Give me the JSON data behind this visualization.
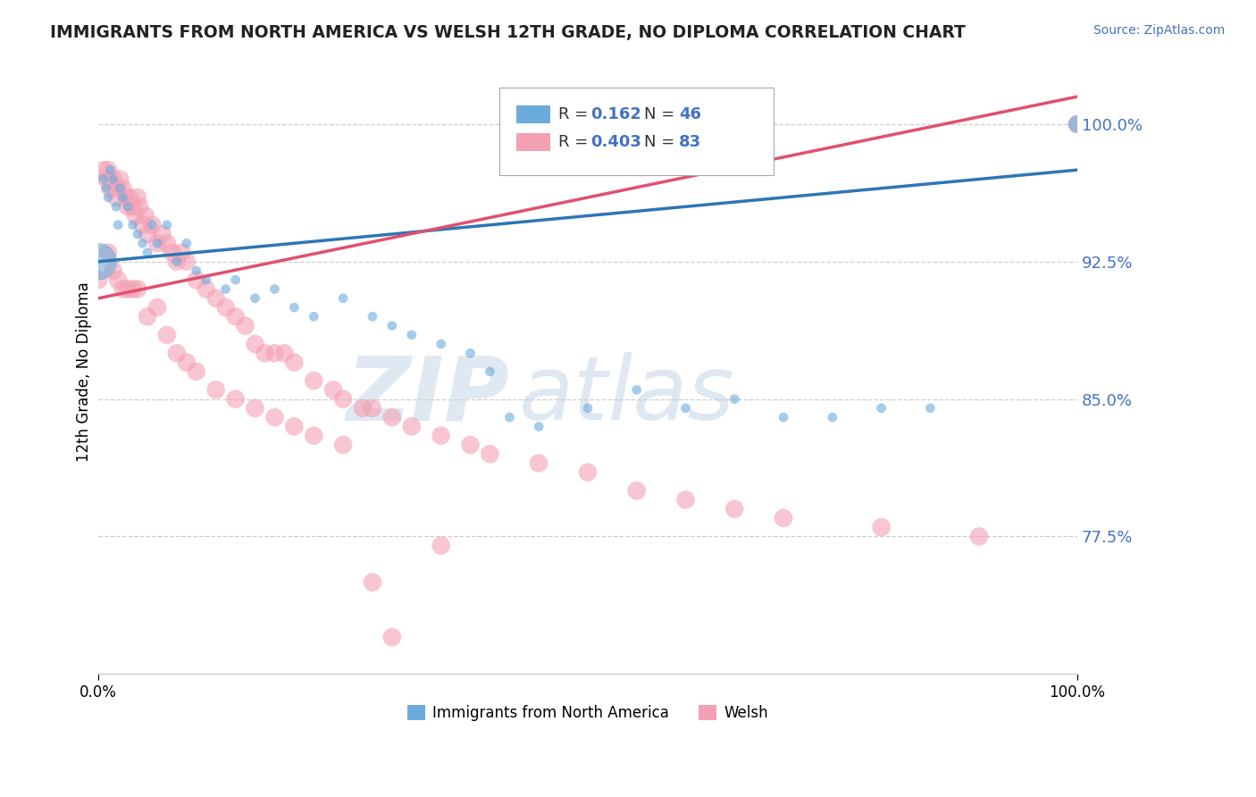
{
  "title": "IMMIGRANTS FROM NORTH AMERICA VS WELSH 12TH GRADE, NO DIPLOMA CORRELATION CHART",
  "source": "Source: ZipAtlas.com",
  "ylabel": "12th Grade, No Diploma",
  "watermark_zip": "ZIP",
  "watermark_atlas": "atlas",
  "xlim": [
    0.0,
    1.0
  ],
  "ylim": [
    0.7,
    1.03
  ],
  "yticks": [
    0.775,
    0.85,
    0.925,
    1.0
  ],
  "ytick_labels": [
    "77.5%",
    "85.0%",
    "92.5%",
    "100.0%"
  ],
  "xticks": [
    0.0,
    1.0
  ],
  "xtick_labels": [
    "0.0%",
    "100.0%"
  ],
  "legend_R1": "0.162",
  "legend_N1": "46",
  "legend_R2": "0.403",
  "legend_N2": "83",
  "blue_color": "#6aabdc",
  "pink_color": "#f4a0b5",
  "blue_line_color": "#2e75b6",
  "pink_line_color": "#e05070",
  "blue_trend_x": [
    0.0,
    1.0
  ],
  "blue_trend_y": [
    0.925,
    0.975
  ],
  "pink_trend_x": [
    0.0,
    1.0
  ],
  "pink_trend_y": [
    0.905,
    1.015
  ],
  "blue_x": [
    0.0,
    0.005,
    0.008,
    0.01,
    0.012,
    0.015,
    0.018,
    0.02,
    0.022,
    0.025,
    0.03,
    0.035,
    0.04,
    0.045,
    0.05,
    0.055,
    0.06,
    0.07,
    0.08,
    0.09,
    0.1,
    0.11,
    0.13,
    0.14,
    0.16,
    0.18,
    0.2,
    0.22,
    0.25,
    0.28,
    0.3,
    0.32,
    0.35,
    0.38,
    0.4,
    0.42,
    0.45,
    0.5,
    0.55,
    0.6,
    0.65,
    0.7,
    0.75,
    0.8,
    0.85,
    1.0
  ],
  "blue_y": [
    0.925,
    0.97,
    0.965,
    0.96,
    0.975,
    0.97,
    0.955,
    0.945,
    0.965,
    0.96,
    0.955,
    0.945,
    0.94,
    0.935,
    0.93,
    0.945,
    0.935,
    0.945,
    0.925,
    0.935,
    0.92,
    0.915,
    0.91,
    0.915,
    0.905,
    0.91,
    0.9,
    0.895,
    0.905,
    0.895,
    0.89,
    0.885,
    0.88,
    0.875,
    0.865,
    0.84,
    0.835,
    0.845,
    0.855,
    0.845,
    0.85,
    0.84,
    0.84,
    0.845,
    0.845,
    1.0
  ],
  "blue_sizes": [
    900,
    60,
    60,
    60,
    60,
    60,
    60,
    60,
    60,
    60,
    60,
    60,
    60,
    60,
    60,
    60,
    60,
    60,
    60,
    60,
    60,
    60,
    60,
    60,
    60,
    60,
    60,
    60,
    60,
    60,
    60,
    60,
    60,
    60,
    60,
    60,
    60,
    60,
    60,
    60,
    60,
    60,
    60,
    60,
    60,
    200
  ],
  "pink_x": [
    0.0,
    0.005,
    0.008,
    0.01,
    0.012,
    0.015,
    0.018,
    0.02,
    0.022,
    0.025,
    0.028,
    0.03,
    0.032,
    0.035,
    0.038,
    0.04,
    0.042,
    0.045,
    0.048,
    0.05,
    0.055,
    0.06,
    0.065,
    0.07,
    0.075,
    0.08,
    0.085,
    0.09,
    0.1,
    0.11,
    0.12,
    0.13,
    0.14,
    0.15,
    0.16,
    0.17,
    0.18,
    0.19,
    0.2,
    0.22,
    0.24,
    0.25,
    0.27,
    0.28,
    0.3,
    0.32,
    0.35,
    0.38,
    0.4,
    0.45,
    0.5,
    0.55,
    0.6,
    0.65,
    0.7,
    0.8,
    0.9,
    1.0,
    0.01,
    0.015,
    0.02,
    0.025,
    0.03,
    0.035,
    0.04,
    0.05,
    0.06,
    0.07,
    0.08,
    0.09,
    0.1,
    0.12,
    0.14,
    0.16,
    0.18,
    0.2,
    0.22,
    0.25,
    0.28,
    0.3,
    0.35
  ],
  "pink_y": [
    0.915,
    0.975,
    0.97,
    0.975,
    0.965,
    0.97,
    0.96,
    0.965,
    0.97,
    0.965,
    0.96,
    0.955,
    0.96,
    0.955,
    0.95,
    0.96,
    0.955,
    0.945,
    0.95,
    0.94,
    0.945,
    0.935,
    0.94,
    0.935,
    0.93,
    0.925,
    0.93,
    0.925,
    0.915,
    0.91,
    0.905,
    0.9,
    0.895,
    0.89,
    0.88,
    0.875,
    0.875,
    0.875,
    0.87,
    0.86,
    0.855,
    0.85,
    0.845,
    0.845,
    0.84,
    0.835,
    0.83,
    0.825,
    0.82,
    0.815,
    0.81,
    0.8,
    0.795,
    0.79,
    0.785,
    0.78,
    0.775,
    1.0,
    0.93,
    0.92,
    0.915,
    0.91,
    0.91,
    0.91,
    0.91,
    0.895,
    0.9,
    0.885,
    0.875,
    0.87,
    0.865,
    0.855,
    0.85,
    0.845,
    0.84,
    0.835,
    0.83,
    0.825,
    0.75,
    0.72,
    0.77
  ]
}
